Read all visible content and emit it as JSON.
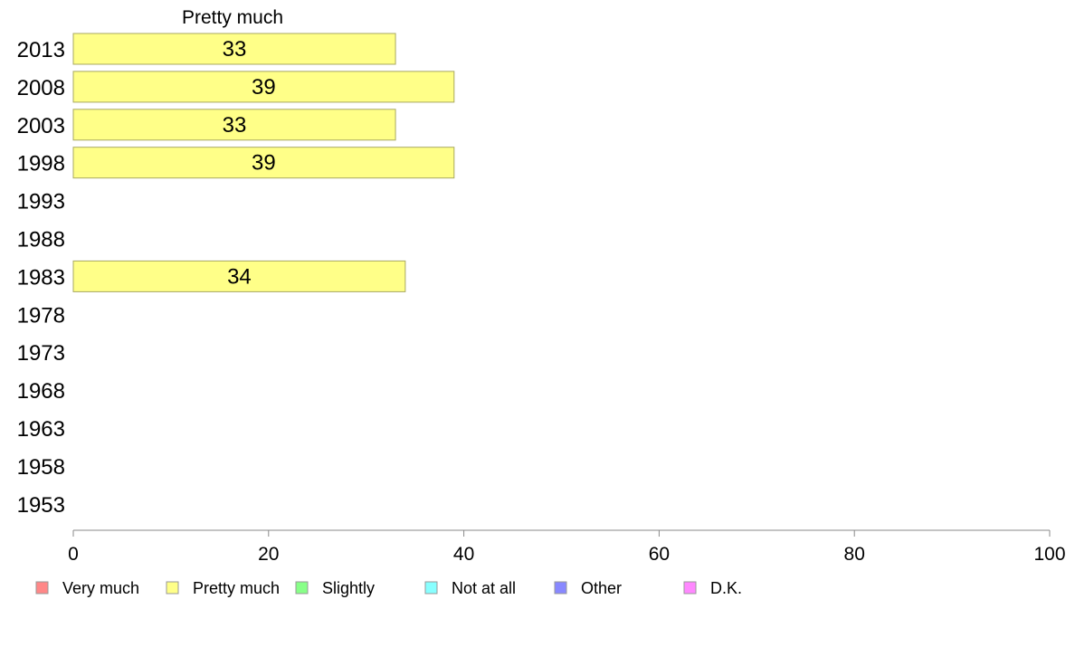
{
  "chart_data": {
    "type": "bar",
    "orientation": "horizontal",
    "title": "Pretty much",
    "categories": [
      "2013",
      "2008",
      "2003",
      "1998",
      "1993",
      "1988",
      "1983",
      "1978",
      "1973",
      "1968",
      "1963",
      "1958",
      "1953"
    ],
    "series": [
      {
        "name": "Pretty much",
        "color": "#ffff88",
        "values": [
          33,
          39,
          33,
          39,
          null,
          null,
          34,
          null,
          null,
          null,
          null,
          null,
          null
        ]
      }
    ],
    "xlim": [
      0,
      100
    ],
    "x_ticks": [
      "0",
      "20",
      "40",
      "60",
      "80",
      "100"
    ],
    "grid": false,
    "legend": {
      "placement": "bottom",
      "items": [
        {
          "label": "Very much",
          "color": "#ff8888"
        },
        {
          "label": "Pretty much",
          "color": "#ffff88"
        },
        {
          "label": "Slightly",
          "color": "#88ff88"
        },
        {
          "label": "Not at all",
          "color": "#88ffff"
        },
        {
          "label": "Other",
          "color": "#8888ff"
        },
        {
          "label": "D.K.",
          "color": "#ff88ff"
        }
      ]
    }
  }
}
